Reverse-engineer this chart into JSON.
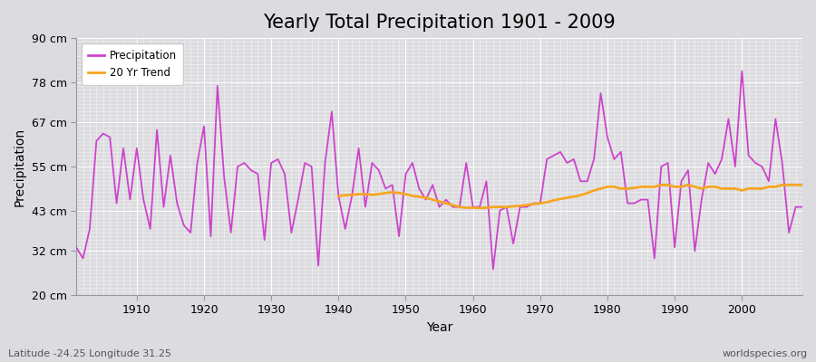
{
  "title": "Yearly Total Precipitation 1901 - 2009",
  "xlabel": "Year",
  "ylabel": "Precipitation",
  "subtitle_left": "Latitude -24.25 Longitude 31.25",
  "subtitle_right": "worldspecies.org",
  "years": [
    1901,
    1902,
    1903,
    1904,
    1905,
    1906,
    1907,
    1908,
    1909,
    1910,
    1911,
    1912,
    1913,
    1914,
    1915,
    1916,
    1917,
    1918,
    1919,
    1920,
    1921,
    1922,
    1923,
    1924,
    1925,
    1926,
    1927,
    1928,
    1929,
    1930,
    1931,
    1932,
    1933,
    1934,
    1935,
    1936,
    1937,
    1938,
    1939,
    1940,
    1941,
    1942,
    1943,
    1944,
    1945,
    1946,
    1947,
    1948,
    1949,
    1950,
    1951,
    1952,
    1953,
    1954,
    1955,
    1956,
    1957,
    1958,
    1959,
    1960,
    1961,
    1962,
    1963,
    1964,
    1965,
    1966,
    1967,
    1968,
    1969,
    1970,
    1971,
    1972,
    1973,
    1974,
    1975,
    1976,
    1977,
    1978,
    1979,
    1980,
    1981,
    1982,
    1983,
    1984,
    1985,
    1986,
    1987,
    1988,
    1989,
    1990,
    1991,
    1992,
    1993,
    1994,
    1995,
    1996,
    1997,
    1998,
    1999,
    2000,
    2001,
    2002,
    2003,
    2004,
    2005,
    2006,
    2007,
    2008,
    2009
  ],
  "precip": [
    33,
    30,
    38,
    62,
    64,
    63,
    45,
    60,
    46,
    60,
    46,
    38,
    65,
    44,
    58,
    45,
    39,
    37,
    56,
    66,
    36,
    77,
    52,
    37,
    55,
    56,
    54,
    53,
    35,
    56,
    57,
    53,
    37,
    46,
    56,
    55,
    28,
    56,
    70,
    47,
    38,
    47,
    60,
    44,
    56,
    54,
    49,
    50,
    36,
    53,
    56,
    49,
    46,
    50,
    44,
    46,
    44,
    44,
    56,
    44,
    44,
    51,
    27,
    43,
    44,
    34,
    44,
    44,
    45,
    45,
    57,
    58,
    59,
    56,
    57,
    51,
    51,
    57,
    75,
    63,
    57,
    59,
    45,
    45,
    46,
    46,
    30,
    55,
    56,
    33,
    51,
    54,
    32,
    46,
    56,
    53,
    57,
    68,
    55,
    81,
    58,
    56,
    55,
    51,
    68,
    56,
    37,
    44,
    44
  ],
  "trend_years": [
    1940,
    1941,
    1942,
    1943,
    1944,
    1945,
    1946,
    1947,
    1948,
    1949,
    1950,
    1951,
    1952,
    1953,
    1954,
    1955,
    1956,
    1957,
    1958,
    1959,
    1960,
    1961,
    1962,
    1963,
    1964,
    1965,
    1966,
    1967,
    1968,
    1969,
    1970,
    1971,
    1972,
    1973,
    1974,
    1975,
    1976,
    1977,
    1978,
    1979,
    1980,
    1981,
    1982,
    1983,
    1984,
    1985,
    1986,
    1987,
    1988,
    1989,
    1990,
    1991,
    1992,
    1993,
    1994,
    1995,
    1996,
    1997,
    1998,
    1999,
    2000,
    2001,
    2002,
    2003,
    2004,
    2005,
    2006,
    2007,
    2008,
    2009
  ],
  "trend": [
    47.0,
    47.2,
    47.3,
    47.5,
    47.5,
    47.3,
    47.5,
    47.8,
    48.0,
    47.8,
    47.5,
    47.0,
    46.8,
    46.5,
    46.0,
    45.5,
    45.0,
    44.5,
    44.0,
    43.8,
    43.8,
    43.7,
    43.8,
    44.0,
    44.0,
    44.0,
    44.2,
    44.3,
    44.5,
    44.8,
    45.0,
    45.3,
    45.8,
    46.2,
    46.5,
    46.8,
    47.2,
    47.8,
    48.5,
    49.0,
    49.5,
    49.5,
    49.0,
    49.0,
    49.2,
    49.5,
    49.5,
    49.5,
    50.0,
    50.0,
    49.5,
    49.5,
    50.0,
    49.5,
    49.0,
    49.5,
    49.5,
    49.0,
    49.0,
    49.0,
    48.5,
    49.0,
    49.0,
    49.0,
    49.5,
    49.5,
    50.0,
    50.0,
    50.0,
    50.0
  ],
  "precip_color": "#cc44cc",
  "trend_color": "#f5a623",
  "bg_color": "#dcdce0",
  "plot_bg_color": "#dcdce0",
  "grid_color": "#ffffff",
  "ylim": [
    20,
    90
  ],
  "ytick_labels": [
    "20 cm",
    "32 cm",
    "43 cm",
    "55 cm",
    "67 cm",
    "78 cm",
    "90 cm"
  ],
  "ytick_values": [
    20,
    32,
    43,
    55,
    67,
    78,
    90
  ],
  "xlim": [
    1901,
    2009
  ],
  "xtick_values": [
    1910,
    1920,
    1930,
    1940,
    1950,
    1960,
    1970,
    1980,
    1990,
    2000
  ],
  "title_fontsize": 15,
  "axis_label_fontsize": 10,
  "tick_fontsize": 9
}
